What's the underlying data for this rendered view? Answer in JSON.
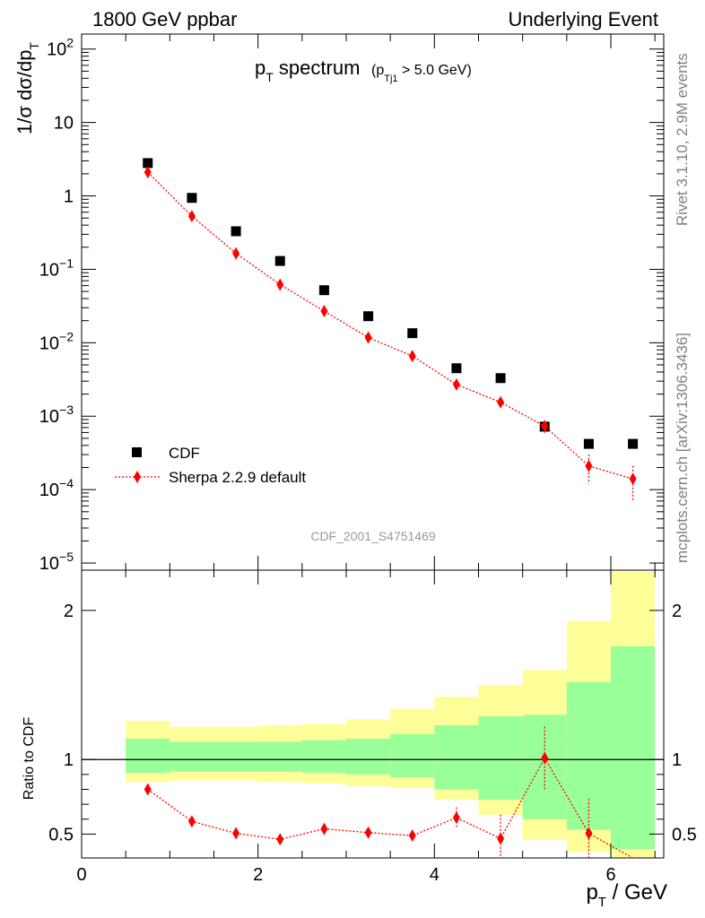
{
  "header": {
    "left": "1800 GeV ppbar",
    "right": "Underlying Event"
  },
  "side_labels": {
    "rivet": "Rivet 3.1.10,  2.9M events",
    "mcplots": "mcplots.cern.ch [arXiv:1306.3436]"
  },
  "plot_title": {
    "main": "p",
    "main_sub": "T",
    "main_rest": " spectrum",
    "cut_p": "(p",
    "cut_sub": "Tj1",
    "cut_rest": " > 5.0 GeV)"
  },
  "analysis_id": "CDF_2001_S4751469",
  "colors": {
    "cdf": "#000000",
    "sherpa": "#ff0000",
    "band_inner": "#99ff99",
    "band_outer": "#ffff99"
  },
  "chart_data": [
    {
      "type": "scatter",
      "name": "main",
      "ylabel": "1/σ dσ/dp",
      "ylabel_sub": "T",
      "yscale": "log",
      "ylim": [
        8e-06,
        160
      ],
      "xlim": [
        0,
        6.6
      ],
      "yticks": [
        {
          "v": 1e-05,
          "label": "10",
          "exp": "−5"
        },
        {
          "v": 0.0001,
          "label": "10",
          "exp": "−4"
        },
        {
          "v": 0.001,
          "label": "10",
          "exp": "−3"
        },
        {
          "v": 0.01,
          "label": "10",
          "exp": "−2"
        },
        {
          "v": 0.1,
          "label": "10",
          "exp": "−1"
        },
        {
          "v": 1,
          "label": "1",
          "exp": ""
        },
        {
          "v": 10,
          "label": "10",
          "exp": ""
        },
        {
          "v": 100,
          "label": "10",
          "exp": "2"
        }
      ],
      "legend_position": "lower-left",
      "series": [
        {
          "name": "CDF",
          "marker": "square",
          "x": [
            0.75,
            1.25,
            1.75,
            2.25,
            2.75,
            3.25,
            3.75,
            4.25,
            4.75,
            5.25,
            5.75,
            6.25
          ],
          "y": [
            2.8,
            0.94,
            0.33,
            0.13,
            0.052,
            0.023,
            0.0135,
            0.0045,
            0.0033,
            0.00072,
            0.00042,
            0.00042
          ]
        },
        {
          "name": "Sherpa 2.2.9 default",
          "marker": "diamond",
          "line": "dotted",
          "x": [
            0.75,
            1.25,
            1.75,
            2.25,
            2.75,
            3.25,
            3.75,
            4.25,
            4.75,
            5.25,
            5.75,
            6.25
          ],
          "y": [
            2.1,
            0.53,
            0.165,
            0.062,
            0.027,
            0.0118,
            0.0066,
            0.0027,
            0.00155,
            0.00073,
            0.00021,
            0.00014
          ],
          "yerr_lo": [
            0,
            0,
            0,
            0,
            0,
            0,
            0,
            0,
            0,
            0.00015,
            9e-05,
            7e-05
          ],
          "yerr_hi": [
            0,
            0,
            0,
            0,
            0,
            0,
            0,
            0,
            0,
            0.00015,
            9e-05,
            7e-05
          ]
        }
      ]
    },
    {
      "type": "scatter",
      "name": "ratio",
      "ylabel": "Ratio to CDF",
      "xlabel": "p",
      "xlabel_sub": "T",
      "xlabel_rest": " / GeV",
      "xlim": [
        0,
        6.6
      ],
      "ylim": [
        0.34,
        2.27
      ],
      "xticks": [
        0,
        2,
        4,
        6
      ],
      "yticks": [
        0.5,
        1,
        2
      ],
      "reference_line": 1,
      "bands": {
        "edges": [
          0.5,
          1.0,
          1.5,
          2.0,
          2.5,
          3.0,
          3.5,
          4.0,
          4.5,
          5.0,
          5.5,
          6.0,
          6.5
        ],
        "outer_hi": [
          1.26,
          1.22,
          1.22,
          1.23,
          1.24,
          1.27,
          1.34,
          1.42,
          1.5,
          1.6,
          1.93,
          2.26,
          2.13
        ],
        "outer_lo": [
          0.85,
          0.86,
          0.86,
          0.85,
          0.84,
          0.82,
          0.81,
          0.73,
          0.63,
          0.46,
          0.38,
          0.3,
          0.3
        ],
        "inner_hi": [
          1.14,
          1.12,
          1.12,
          1.12,
          1.13,
          1.14,
          1.17,
          1.23,
          1.29,
          1.3,
          1.52,
          1.76,
          1.67
        ],
        "inner_lo": [
          0.91,
          0.92,
          0.92,
          0.92,
          0.91,
          0.9,
          0.88,
          0.8,
          0.73,
          0.6,
          0.53,
          0.4,
          0.3
        ]
      },
      "series": [
        {
          "name": "Sherpa 2.2.9 default",
          "x": [
            0.75,
            1.25,
            1.75,
            2.25,
            2.75,
            3.25,
            3.75,
            4.25,
            4.75,
            5.25,
            5.75,
            6.25
          ],
          "y": [
            0.8,
            0.585,
            0.505,
            0.465,
            0.535,
            0.51,
            0.49,
            0.61,
            0.47,
            1.01,
            0.505,
            0.3
          ],
          "yerr_lo": [
            0,
            0,
            0,
            0,
            0.02,
            0.03,
            0.03,
            0.07,
            0.16,
            0.21,
            0.23,
            0
          ],
          "yerr_hi": [
            0,
            0,
            0,
            0,
            0.02,
            0.03,
            0.03,
            0.07,
            0.16,
            0.21,
            0.23,
            0
          ]
        }
      ]
    }
  ]
}
